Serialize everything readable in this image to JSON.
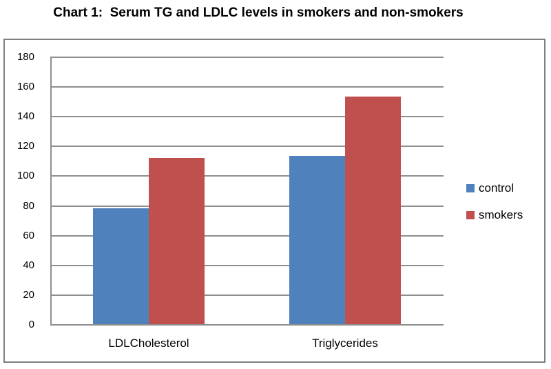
{
  "title": "Chart 1:  Serum TG and LDLC levels in smokers and non-smokers",
  "colors": {
    "control": "#4F81BD",
    "smokers": "#C0504D",
    "gridline": "#8E8E8E",
    "frame_border": "#7F7F7F",
    "text": "#000000",
    "background": "#FFFFFF"
  },
  "legend": {
    "items": [
      {
        "label": "control",
        "color": "#4F81BD",
        "swatch_icon": "legend-swatch-square"
      },
      {
        "label": "smokers",
        "color": "#C0504D",
        "swatch_icon": "legend-swatch-square"
      }
    ]
  },
  "chart_data": {
    "type": "bar",
    "title": "Chart 1:  Serum TG and LDLC levels in smokers and non-smokers",
    "categories": [
      "LDLCholesterol",
      "Triglycerides"
    ],
    "series": [
      {
        "name": "control",
        "color": "#4F81BD",
        "values": [
          78,
          113
        ]
      },
      {
        "name": "smokers",
        "color": "#C0504D",
        "values": [
          112,
          153
        ]
      }
    ],
    "xlabel": "",
    "ylabel": "",
    "ylim": [
      0,
      180
    ],
    "ytick_step": 20,
    "yticks": [
      0,
      20,
      40,
      60,
      80,
      100,
      120,
      140,
      160,
      180
    ],
    "grid": true,
    "legend_position": "right"
  }
}
